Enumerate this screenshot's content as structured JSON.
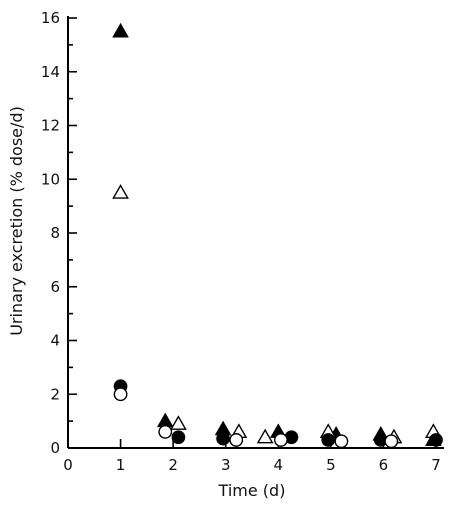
{
  "chart_data": {
    "type": "scatter",
    "xlabel": "Time (d)",
    "ylabel": "Urinary excretion (% dose/d)",
    "xlim": [
      0,
      7
    ],
    "ylim": [
      0,
      16
    ],
    "x_ticks": [
      0,
      1,
      2,
      3,
      4,
      5,
      6,
      7
    ],
    "y_ticks": [
      0,
      2,
      4,
      6,
      8,
      10,
      12,
      14,
      16
    ],
    "y_minor_step": 1,
    "grid": false,
    "legend": "none",
    "series": [
      {
        "marker": "filled-triangle",
        "points": [
          [
            1.0,
            15.5
          ],
          [
            1.85,
            1.0
          ],
          [
            2.95,
            0.7
          ],
          [
            4.0,
            0.6
          ],
          [
            5.1,
            0.5
          ],
          [
            5.95,
            0.5
          ],
          [
            6.95,
            0.3
          ]
        ]
      },
      {
        "marker": "open-triangle",
        "points": [
          [
            1.0,
            9.5
          ],
          [
            2.1,
            0.9
          ],
          [
            3.25,
            0.6
          ],
          [
            3.75,
            0.4
          ],
          [
            4.95,
            0.6
          ],
          [
            6.2,
            0.4
          ],
          [
            6.95,
            0.6
          ]
        ]
      },
      {
        "marker": "filled-circle",
        "points": [
          [
            1.0,
            2.3
          ],
          [
            2.1,
            0.4
          ],
          [
            2.95,
            0.35
          ],
          [
            4.25,
            0.4
          ],
          [
            4.95,
            0.3
          ],
          [
            5.95,
            0.3
          ],
          [
            7.0,
            0.3
          ]
        ]
      },
      {
        "marker": "open-circle",
        "points": [
          [
            1.0,
            2.0
          ],
          [
            1.85,
            0.6
          ],
          [
            3.2,
            0.3
          ],
          [
            4.05,
            0.3
          ],
          [
            5.2,
            0.25
          ],
          [
            6.15,
            0.25
          ]
        ]
      }
    ]
  }
}
